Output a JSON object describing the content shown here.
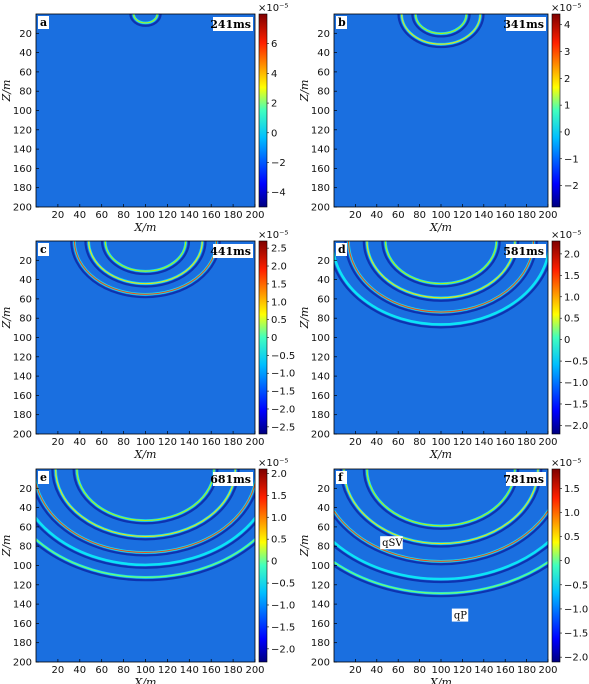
{
  "chart_data": [
    {
      "type": "heatmap",
      "panel_label": "a",
      "time_label": "241ms",
      "xlabel": "X/m",
      "ylabel": "Z/m",
      "x_ticks": [
        "20",
        "40",
        "60",
        "80",
        "100",
        "120",
        "140",
        "160",
        "180",
        "200"
      ],
      "y_ticks": [
        "20",
        "40",
        "60",
        "80",
        "100",
        "120",
        "140",
        "160",
        "180",
        "200"
      ],
      "xlim": [
        0,
        200
      ],
      "ylim": [
        200,
        0
      ],
      "source_x": 100,
      "wave_radii": [
        10
      ],
      "colorbar": {
        "exponent": "×10⁻⁵",
        "range": [
          -5,
          8
        ],
        "ticks": [
          "6",
          "4",
          "2",
          "0",
          "−2",
          "−4"
        ],
        "tick_values": [
          6,
          4,
          2,
          0,
          -2,
          -4
        ]
      },
      "annotations": []
    },
    {
      "type": "heatmap",
      "panel_label": "b",
      "time_label": "341ms",
      "xlabel": "X/m",
      "ylabel": "Z/m",
      "x_ticks": [
        "20",
        "40",
        "60",
        "80",
        "100",
        "120",
        "140",
        "160",
        "180",
        "200"
      ],
      "y_ticks": [
        "20",
        "40",
        "60",
        "80",
        "100",
        "120",
        "140",
        "160",
        "180",
        "200"
      ],
      "xlim": [
        0,
        200
      ],
      "ylim": [
        200,
        0
      ],
      "source_x": 100,
      "wave_radii": [
        22,
        34
      ],
      "colorbar": {
        "exponent": "×10⁻⁵",
        "range": [
          -2.8,
          4.4
        ],
        "ticks": [
          "4",
          "3",
          "2",
          "1",
          "0",
          "−1",
          "−2"
        ],
        "tick_values": [
          4,
          3,
          2,
          1,
          0,
          -1,
          -2
        ]
      },
      "annotations": []
    },
    {
      "type": "heatmap",
      "panel_label": "c",
      "time_label": "441ms",
      "xlabel": "X/m",
      "ylabel": "Z/m",
      "x_ticks": [
        "20",
        "40",
        "60",
        "80",
        "100",
        "120",
        "140",
        "160",
        "180",
        "200"
      ],
      "y_ticks": [
        "20",
        "40",
        "60",
        "80",
        "100",
        "120",
        "140",
        "160",
        "180",
        "200"
      ],
      "xlim": [
        0,
        200
      ],
      "ylim": [
        200,
        0
      ],
      "source_x": 100,
      "wave_radii": [
        34,
        48,
        60
      ],
      "colorbar": {
        "exponent": "×10⁻⁵",
        "range": [
          -2.7,
          2.7
        ],
        "ticks": [
          "2.5",
          "2.0",
          "1.5",
          "1.0",
          "0.5",
          "0",
          "−0.5",
          "−1.0",
          "−1.5",
          "−2.0",
          "−2.5"
        ],
        "tick_values": [
          2.5,
          2,
          1.5,
          1,
          0.5,
          0,
          -0.5,
          -1,
          -1.5,
          -2,
          -2.5
        ]
      },
      "annotations": []
    },
    {
      "type": "heatmap",
      "panel_label": "d",
      "time_label": "581ms",
      "xlabel": "X/m",
      "ylabel": "Z/m",
      "x_ticks": [
        "20",
        "40",
        "60",
        "80",
        "100",
        "120",
        "140",
        "160",
        "180",
        "200"
      ],
      "y_ticks": [
        "20",
        "40",
        "60",
        "80",
        "100",
        "120",
        "140",
        "160",
        "180",
        "200"
      ],
      "xlim": [
        0,
        200
      ],
      "ylim": [
        200,
        0
      ],
      "source_x": 100,
      "wave_radii": [
        48,
        64,
        80,
        94
      ],
      "colorbar": {
        "exponent": "×10⁻⁵",
        "range": [
          -2.2,
          2.3
        ],
        "ticks": [
          "2.0",
          "1.5",
          "1.0",
          "0.5",
          "0",
          "−0.5",
          "−1.0",
          "−1.5",
          "−2.0"
        ],
        "tick_values": [
          2,
          1.5,
          1,
          0.5,
          0,
          -0.5,
          -1,
          -1.5,
          -2
        ]
      },
      "annotations": []
    },
    {
      "type": "heatmap",
      "panel_label": "e",
      "time_label": "681ms",
      "xlabel": "X/m",
      "ylabel": "Z/m",
      "x_ticks": [
        "20",
        "40",
        "60",
        "80",
        "100",
        "120",
        "140",
        "160",
        "180",
        "200"
      ],
      "y_ticks": [
        "20",
        "40",
        "60",
        "80",
        "100",
        "120",
        "140",
        "160",
        "180",
        "200"
      ],
      "xlim": [
        0,
        200
      ],
      "ylim": [
        200,
        0
      ],
      "source_x": 100,
      "wave_radii": [
        58,
        76,
        94,
        108,
        122
      ],
      "colorbar": {
        "exponent": "×10⁻⁵",
        "range": [
          -2.3,
          2.1
        ],
        "ticks": [
          "2.0",
          "1.5",
          "1.0",
          "0.5",
          "0",
          "−0.5",
          "−1.0",
          "−1.5",
          "−2.0"
        ],
        "tick_values": [
          2,
          1.5,
          1,
          0.5,
          0,
          -0.5,
          -1,
          -1.5,
          -2
        ]
      },
      "annotations": []
    },
    {
      "type": "heatmap",
      "panel_label": "f",
      "time_label": "781ms",
      "xlabel": "X/m",
      "ylabel": "Z/m",
      "x_ticks": [
        "20",
        "40",
        "60",
        "80",
        "100",
        "120",
        "140",
        "160",
        "180",
        "200"
      ],
      "y_ticks": [
        "20",
        "40",
        "60",
        "80",
        "100",
        "120",
        "140",
        "160",
        "180",
        "200"
      ],
      "xlim": [
        0,
        200
      ],
      "ylim": [
        200,
        0
      ],
      "source_x": 100,
      "wave_radii": [
        64,
        84,
        104,
        124,
        140
      ],
      "colorbar": {
        "exponent": "×10⁻⁵",
        "range": [
          -2.1,
          1.9
        ],
        "ticks": [
          "1.5",
          "1.0",
          "0.5",
          "0",
          "−0.5",
          "−1.0",
          "−1.5",
          "−2.0"
        ],
        "tick_values": [
          1.5,
          1,
          0.5,
          0,
          -0.5,
          -1,
          -1.5,
          -2
        ]
      },
      "annotations": [
        {
          "text": "qSV",
          "x": 45,
          "z": 80
        },
        {
          "text": "qP",
          "x": 112,
          "z": 155
        }
      ]
    }
  ]
}
